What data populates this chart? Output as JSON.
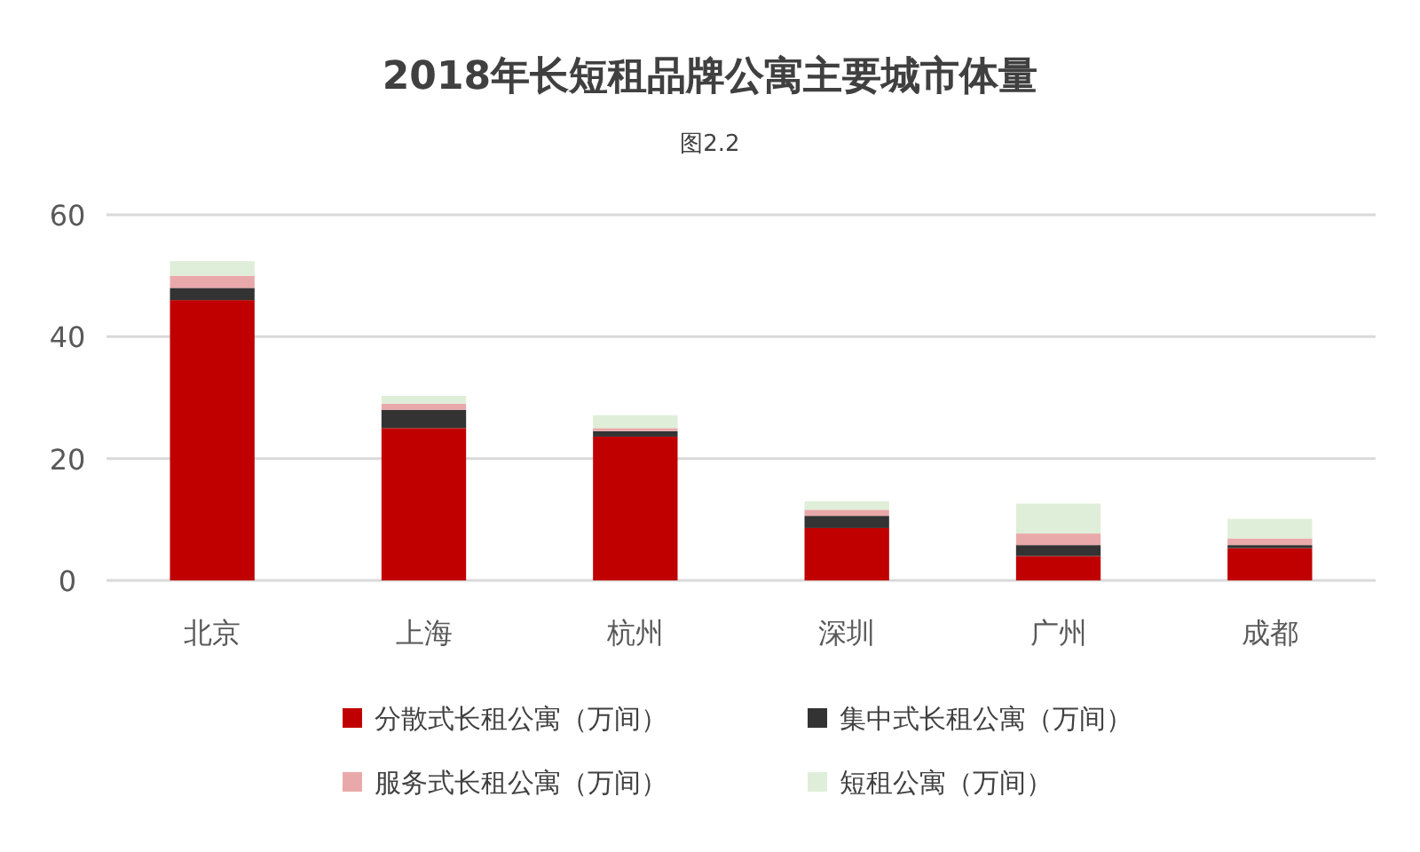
{
  "chart_data": {
    "type": "bar",
    "title": "2018年长短租品牌公寓主要城市体量",
    "subtitle": "图2.2",
    "categories": [
      "北京",
      "上海",
      "杭州",
      "深圳",
      "广州",
      "成都"
    ],
    "stacked": true,
    "ylim": [
      0,
      60
    ],
    "yticks": [
      0,
      20,
      40,
      60
    ],
    "grid": "y",
    "legend": "bottom",
    "series": [
      {
        "name": "分散式长租公寓（万间）",
        "color": "#c00000",
        "values": [
          46,
          25,
          23.6,
          8.6,
          4,
          5.3
        ]
      },
      {
        "name": "集中式长租公寓（万间）",
        "color": "#333333",
        "values": [
          2,
          3,
          0.9,
          2,
          1.8,
          0.5
        ]
      },
      {
        "name": "服务式长租公寓（万间）",
        "color": "#e9a9aa",
        "values": [
          2,
          1,
          0.5,
          1,
          1.9,
          1.1
        ]
      },
      {
        "name": "短租公寓（万间）",
        "color": "#dfeed8",
        "values": [
          2.4,
          1.3,
          2.1,
          1.4,
          4.9,
          3.2
        ]
      }
    ]
  }
}
